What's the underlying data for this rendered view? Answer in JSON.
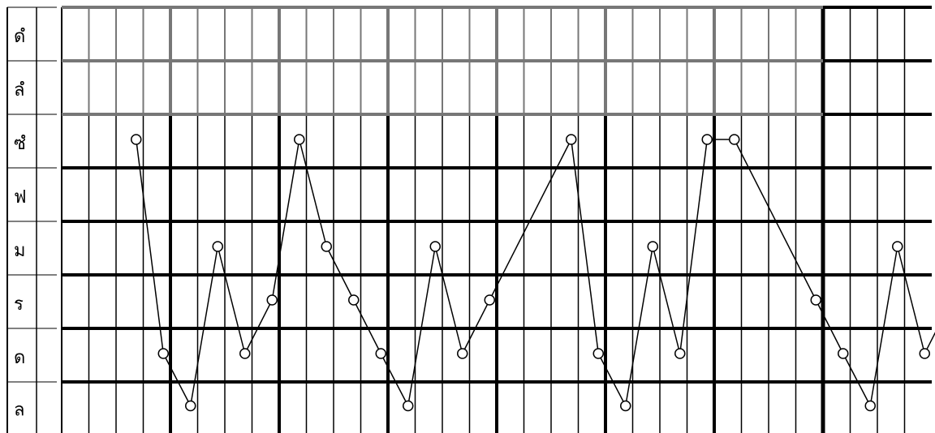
{
  "chart_data": {
    "type": "line",
    "title": "",
    "xlabel": "",
    "ylabel": "",
    "pitch_labels": [
      "ดํ",
      "ลํ",
      "ซํ",
      "ฟ",
      "ม",
      "ร",
      "ด",
      "ล"
    ],
    "pitch_labels_note": "listed from top row to bottom row",
    "x": [
      2,
      3,
      4,
      5,
      6,
      7,
      8,
      9,
      10,
      11,
      12,
      13,
      14,
      15,
      16,
      17,
      18,
      19,
      20,
      21,
      22,
      23,
      24,
      25,
      26,
      27,
      28,
      29,
      30,
      31,
      32
    ],
    "series": [
      {
        "name": "",
        "pitch": [
          "ซํ",
          "ด",
          "ล",
          "ม",
          "ด",
          "ร",
          "ซํ",
          "ม",
          "ร",
          "ด",
          "ล",
          "ม",
          "ด",
          "ร",
          "ซํ",
          "ด",
          "ล",
          "ม",
          "ด",
          "ซํ",
          "ซํ",
          "ร",
          "ด",
          "ล",
          "ม",
          "ด",
          "ร"
        ],
        "x": [
          2,
          3,
          4,
          5,
          6,
          7,
          8,
          9,
          10,
          11,
          12,
          13,
          14,
          15,
          18,
          19,
          20,
          21,
          22,
          23,
          24,
          27,
          28,
          29,
          30,
          31,
          32
        ],
        "values": [
          5,
          1,
          0,
          3,
          1,
          2,
          5,
          3,
          2,
          1,
          0,
          3,
          1,
          2,
          5,
          1,
          0,
          3,
          1,
          5,
          5,
          2,
          1,
          0,
          3,
          1,
          2
        ]
      }
    ],
    "ylim": [
      0,
      7
    ],
    "xlim": [
      -1,
      32
    ],
    "grid": true,
    "colors": {
      "line": "#000000",
      "marker": "#000000",
      "bold_grid": "#000000",
      "light_grid": "#777777",
      "thin_grid": "#000000"
    }
  }
}
